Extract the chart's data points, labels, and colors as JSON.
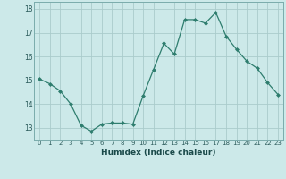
{
  "x": [
    0,
    1,
    2,
    3,
    4,
    5,
    6,
    7,
    8,
    9,
    10,
    11,
    12,
    13,
    14,
    15,
    16,
    17,
    18,
    19,
    20,
    21,
    22,
    23
  ],
  "y": [
    15.05,
    14.85,
    14.55,
    14.0,
    13.1,
    12.85,
    13.15,
    13.2,
    13.2,
    13.15,
    14.35,
    15.45,
    16.55,
    16.1,
    17.55,
    17.55,
    17.4,
    17.85,
    16.85,
    16.3,
    15.8,
    15.5,
    14.9,
    14.4
  ],
  "line_color": "#2e7d6e",
  "marker": "D",
  "marker_size": 2.0,
  "bg_color": "#cce9e9",
  "grid_color": "#aacccc",
  "xlabel": "Humidex (Indice chaleur)",
  "ylim": [
    12.5,
    18.3
  ],
  "xlim": [
    -0.5,
    23.5
  ],
  "yticks": [
    13,
    14,
    15,
    16,
    17,
    18
  ],
  "xticks": [
    0,
    1,
    2,
    3,
    4,
    5,
    6,
    7,
    8,
    9,
    10,
    11,
    12,
    13,
    14,
    15,
    16,
    17,
    18,
    19,
    20,
    21,
    22,
    23
  ]
}
